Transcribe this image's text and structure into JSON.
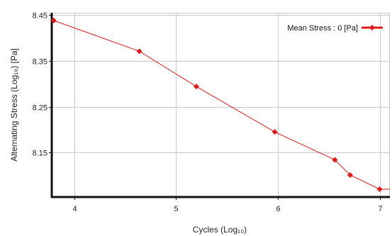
{
  "chart_data": {
    "type": "line",
    "xlabel": "Cycles (Log₁₀)",
    "ylabel": "Alternating Stress  (Log₁₀)  [Pa]",
    "xlim": [
      3.78,
      7.1
    ],
    "ylim": [
      8.053,
      8.455
    ],
    "x_ticks": [
      4,
      5,
      6,
      7
    ],
    "x_tick_labels": [
      "4",
      "5",
      "6",
      "7"
    ],
    "y_ticks": [
      8.15,
      8.25,
      8.35,
      8.45
    ],
    "y_tick_labels": [
      "8.15",
      "8.25",
      "8.35",
      "8.45"
    ],
    "grid": true,
    "legend_position": "top-right",
    "series": [
      {
        "name": "Mean Stress : 0 [Pa]",
        "color": "#e01818",
        "marker": "diamond",
        "points": [
          {
            "x": 3.8,
            "y": 8.438
          },
          {
            "x": 4.64,
            "y": 8.371
          },
          {
            "x": 5.2,
            "y": 8.294
          },
          {
            "x": 5.97,
            "y": 8.195
          },
          {
            "x": 6.56,
            "y": 8.134
          },
          {
            "x": 6.71,
            "y": 8.101
          },
          {
            "x": 7.0,
            "y": 8.07
          }
        ]
      }
    ]
  }
}
